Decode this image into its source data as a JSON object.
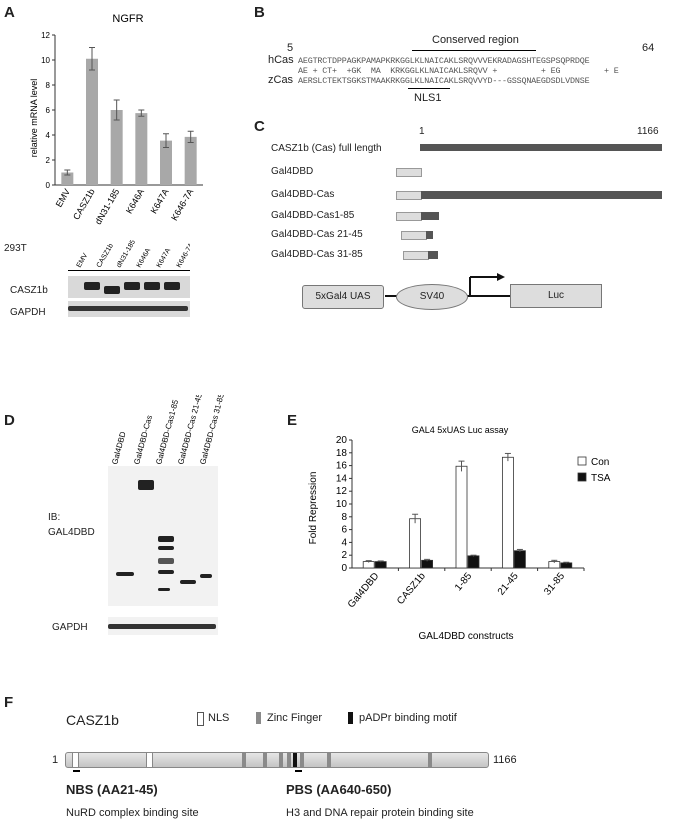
{
  "panels": {
    "A": "A",
    "B": "B",
    "C": "C",
    "D": "D",
    "E": "E",
    "F": "F"
  },
  "panelA": {
    "chart_data": {
      "type": "bar",
      "title": "NGFR",
      "ylabel": "relative mRNA level",
      "categories": [
        "EMV",
        "CASZ1b",
        "dN31-185",
        "K646A",
        "K647A",
        "K646-7A"
      ],
      "values": [
        1.0,
        10.1,
        6.0,
        5.75,
        3.55,
        3.85
      ],
      "errors": [
        0.2,
        0.9,
        0.8,
        0.25,
        0.55,
        0.45
      ],
      "ylim": [
        0,
        12
      ],
      "yticks": [
        "0",
        "2",
        "4",
        "6",
        "8",
        "10",
        "12"
      ],
      "bar_color": "#a8a8a8"
    },
    "blot": {
      "cell_line": "293T",
      "lanes": [
        "EMV",
        "CASZ1b",
        "dN31-185",
        "K646A",
        "K647A",
        "K646-7A"
      ],
      "rows": [
        "CASZ1b",
        "GAPDH"
      ]
    }
  },
  "panelB": {
    "start": "5",
    "end": "64",
    "region_label": "Conserved region",
    "seqs": [
      {
        "name": "hCas",
        "seq": "AEGTRCTDPPAGKPAMAPKRKGGLKLNAICAKLSRQVVVEKRADAGSHTEGSPSQPRDQE"
      },
      {
        "name": "",
        "seq": "AE + CT+  +GK  MA  KRKGGLKLNAICAKLSRQVV +         + EG         + E"
      },
      {
        "name": "zCas",
        "seq": "AERSLCTEKTSGKSTMAAKRKGGLKLNAICAKLSRQVVYD---GSSQNAEGDSDLVDNSE"
      }
    ],
    "nls_label": "NLS1"
  },
  "panelC": {
    "start": "1",
    "end": "1166",
    "constructs": [
      "CASZ1b (Cas) full length",
      "Gal4DBD",
      "Gal4DBD-Cas",
      "Gal4DBD-Cas1-85",
      "Gal4DBD-Cas 21-45",
      "Gal4DBD-Cas 31-85"
    ],
    "reporter": {
      "uas": "5xGal4 UAS",
      "promoter": "SV40",
      "gene": "Luc"
    }
  },
  "panelD": {
    "lanes": [
      "Gal4DBD",
      "Gal4DBD-Cas",
      "Gal4DBD-Cas1-85",
      "Gal4DBD-Cas 21-45",
      "Gal4DBD-Cas 31-85"
    ],
    "ib_label": "IB:",
    "ib_target": "GAL4DBD",
    "loading": "GAPDH"
  },
  "panelE": {
    "chart_data": {
      "type": "bar",
      "title": "GAL4 5xUAS Luc assay",
      "xlabel": "GAL4DBD constructs",
      "ylabel": "Fold Repression",
      "categories": [
        "Gal4DBD",
        "CASZ1b",
        "1-85",
        "21-45",
        "31-85"
      ],
      "series": [
        {
          "name": "Con",
          "values": [
            1.0,
            7.7,
            15.9,
            17.3,
            1.0
          ],
          "errors": [
            0.15,
            0.7,
            0.8,
            0.6,
            0.2
          ],
          "color": "#ffffff"
        },
        {
          "name": "TSA",
          "values": [
            1.0,
            1.2,
            1.9,
            2.7,
            0.8
          ],
          "errors": [
            0.1,
            0.15,
            0.1,
            0.2,
            0.1
          ],
          "color": "#111111"
        }
      ],
      "ylim": [
        0,
        20
      ],
      "yticks": [
        "0",
        "2",
        "4",
        "6",
        "8",
        "10",
        "12",
        "14",
        "16",
        "18",
        "20"
      ],
      "legend": "right"
    }
  },
  "panelF": {
    "protein": "CASZ1b",
    "start": "1",
    "end": "1166",
    "legend": [
      "NLS",
      "Zinc Finger",
      "pADPr binding motif"
    ],
    "nbs_title": "NBS (AA21-45)",
    "nbs_desc": "NuRD complex binding site",
    "pbs_title": "PBS (AA640-650)",
    "pbs_desc": "H3 and DNA repair protein binding site"
  }
}
